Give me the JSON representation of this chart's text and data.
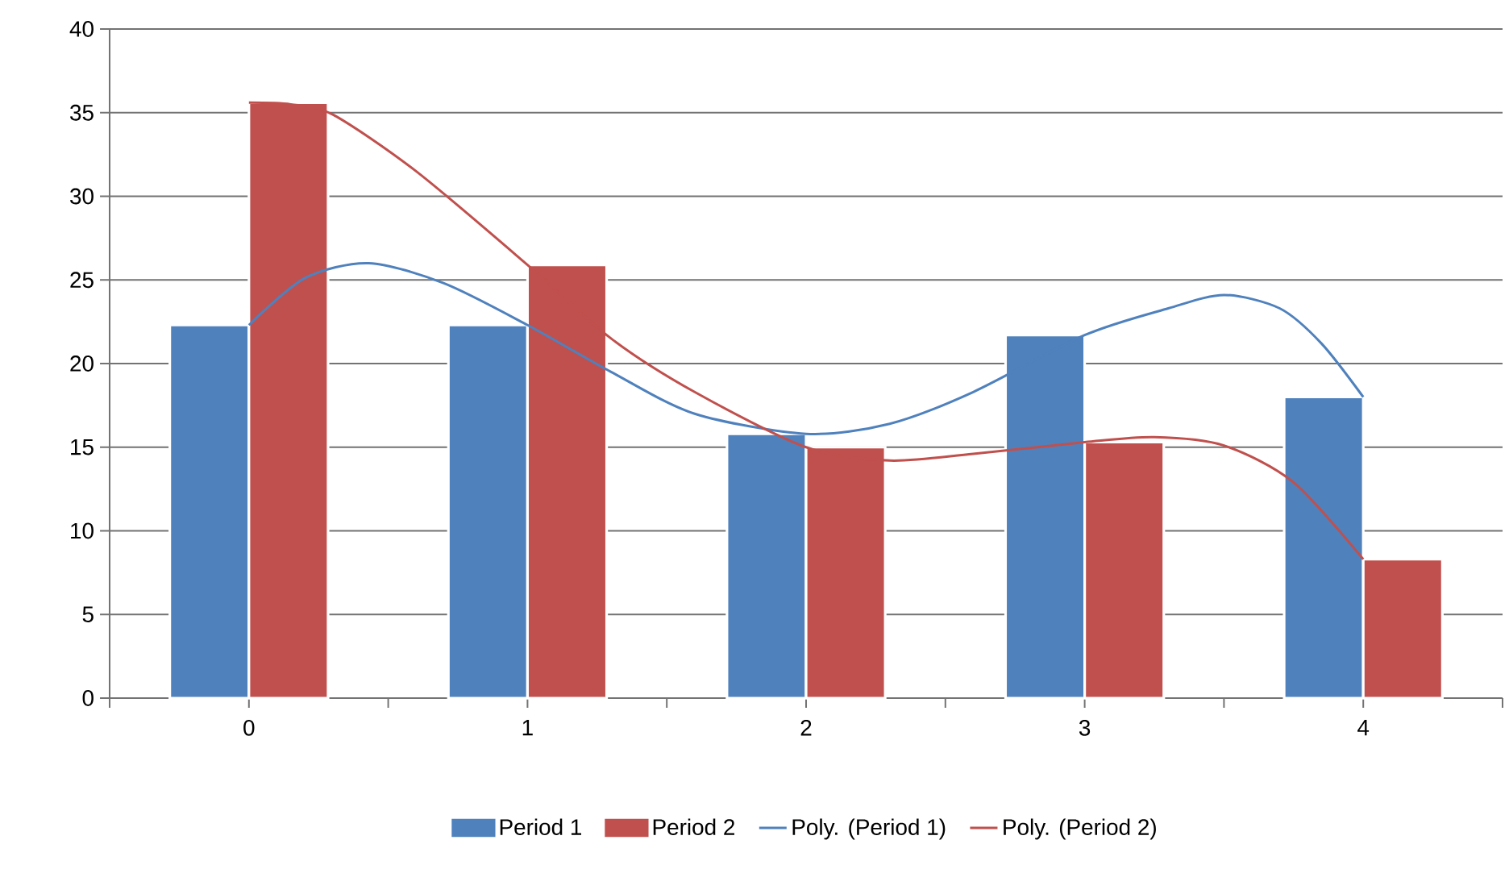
{
  "chart_data": {
    "type": "bar",
    "x": [
      0,
      1,
      2,
      3,
      4
    ],
    "series": [
      {
        "name": "Period 1",
        "color": "#4f81bd",
        "values": [
          22.3,
          22.3,
          15.8,
          21.7,
          18.0
        ]
      },
      {
        "name": "Period 2",
        "color": "#c0504d",
        "values": [
          35.6,
          25.9,
          15.0,
          15.3,
          8.3
        ]
      },
      {
        "name": "Poly. (Period 1)",
        "type": "line",
        "color": "#4f81bd",
        "x": [
          0,
          0.2,
          0.43,
          0.7,
          1,
          1.3,
          1.6,
          2,
          2.3,
          2.6,
          3,
          3.3,
          3.5,
          3.7,
          3.85,
          4
        ],
        "values": [
          22.3,
          25.1,
          26.0,
          24.8,
          22.3,
          19.5,
          17.0,
          15.8,
          16.4,
          18.3,
          21.7,
          23.3,
          24.1,
          23.3,
          21.2,
          18.0
        ]
      },
      {
        "name": "Poly. (Period 2)",
        "type": "line",
        "color": "#c0504d",
        "x": [
          0,
          0.15,
          0.3,
          0.6,
          1,
          1.3,
          1.6,
          2,
          2.3,
          2.6,
          3,
          3.25,
          3.5,
          3.75,
          4
        ],
        "values": [
          35.6,
          35.5,
          34.9,
          31.5,
          25.9,
          21.5,
          18.3,
          15.0,
          14.2,
          14.6,
          15.3,
          15.6,
          15.1,
          12.9,
          8.3
        ]
      }
    ],
    "xlim": [
      -0.5,
      4.5
    ],
    "xticks": [
      0,
      1,
      2,
      3,
      4
    ],
    "ylim": [
      0,
      40
    ],
    "yticks": [
      0,
      5,
      10,
      15,
      20,
      25,
      30,
      35,
      40
    ],
    "grid": "y",
    "legend": "bottom",
    "marker": "none"
  }
}
